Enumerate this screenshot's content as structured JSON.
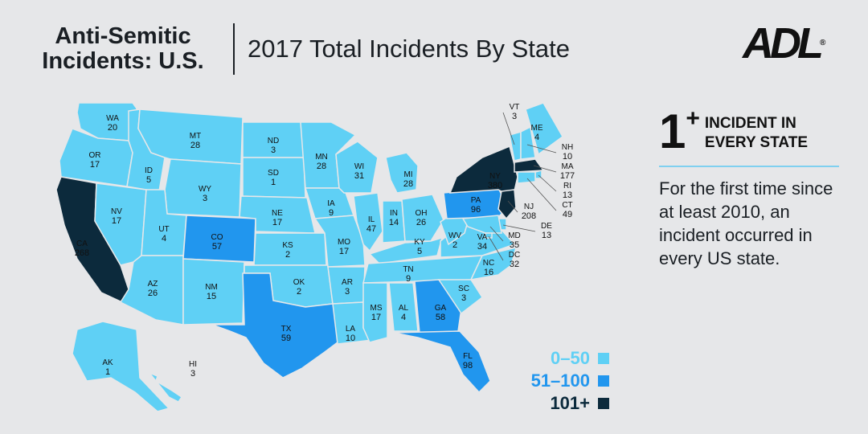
{
  "header": {
    "title_line1": "Anti-Semitic",
    "title_line2": "Incidents: U.S.",
    "subtitle": "2017 Total Incidents By State"
  },
  "logo": {
    "text": "ADL",
    "mark": "®"
  },
  "side_panel": {
    "big_number": "1",
    "big_suffix": "+",
    "label_line1": "INCIDENT IN",
    "label_line2": "EVERY STATE",
    "body": "For the first time since at least 2010, an incident occurred in every US state."
  },
  "legend": [
    {
      "label": "0–50",
      "color": "#5fd0f5"
    },
    {
      "label": "51–100",
      "color": "#2196ee"
    },
    {
      "label": "101+",
      "color": "#0c2a3c"
    }
  ],
  "colors": {
    "low": "#5fd0f5",
    "mid": "#2196ee",
    "high": "#0c2a3c",
    "border": "#e6e7e9"
  },
  "map_data": {
    "states": [
      {
        "abbr": "WA",
        "value": 20
      },
      {
        "abbr": "OR",
        "value": 17
      },
      {
        "abbr": "CA",
        "value": 268
      },
      {
        "abbr": "NV",
        "value": 17
      },
      {
        "abbr": "ID",
        "value": 5
      },
      {
        "abbr": "MT",
        "value": 28
      },
      {
        "abbr": "WY",
        "value": 3
      },
      {
        "abbr": "UT",
        "value": 4
      },
      {
        "abbr": "AZ",
        "value": 26
      },
      {
        "abbr": "CO",
        "value": 57
      },
      {
        "abbr": "NM",
        "value": 15
      },
      {
        "abbr": "ND",
        "value": 3
      },
      {
        "abbr": "SD",
        "value": 1
      },
      {
        "abbr": "NE",
        "value": 17
      },
      {
        "abbr": "KS",
        "value": 2
      },
      {
        "abbr": "OK",
        "value": 2
      },
      {
        "abbr": "TX",
        "value": 59
      },
      {
        "abbr": "MN",
        "value": 28
      },
      {
        "abbr": "IA",
        "value": 9
      },
      {
        "abbr": "MO",
        "value": 17
      },
      {
        "abbr": "AR",
        "value": 3
      },
      {
        "abbr": "LA",
        "value": 10
      },
      {
        "abbr": "WI",
        "value": 31
      },
      {
        "abbr": "IL",
        "value": 47
      },
      {
        "abbr": "MI",
        "value": 28
      },
      {
        "abbr": "IN",
        "value": 14
      },
      {
        "abbr": "OH",
        "value": 26
      },
      {
        "abbr": "KY",
        "value": 5
      },
      {
        "abbr": "TN",
        "value": 9
      },
      {
        "abbr": "MS",
        "value": 17
      },
      {
        "abbr": "AL",
        "value": 4
      },
      {
        "abbr": "GA",
        "value": 58
      },
      {
        "abbr": "FL",
        "value": 98
      },
      {
        "abbr": "SC",
        "value": 3
      },
      {
        "abbr": "NC",
        "value": 16
      },
      {
        "abbr": "VA",
        "value": 34
      },
      {
        "abbr": "WV",
        "value": 2
      },
      {
        "abbr": "PA",
        "value": 96
      },
      {
        "abbr": "NY",
        "value": 380
      },
      {
        "abbr": "VT",
        "value": 3
      },
      {
        "abbr": "ME",
        "value": 4
      },
      {
        "abbr": "NH",
        "value": 10
      },
      {
        "abbr": "MA",
        "value": 177
      },
      {
        "abbr": "RI",
        "value": 13
      },
      {
        "abbr": "CT",
        "value": 49
      },
      {
        "abbr": "NJ",
        "value": 208
      },
      {
        "abbr": "DE",
        "value": 13
      },
      {
        "abbr": "MD",
        "value": 35
      },
      {
        "abbr": "DC",
        "value": 32
      },
      {
        "abbr": "AK",
        "value": 1
      },
      {
        "abbr": "HI",
        "value": 3
      }
    ]
  }
}
